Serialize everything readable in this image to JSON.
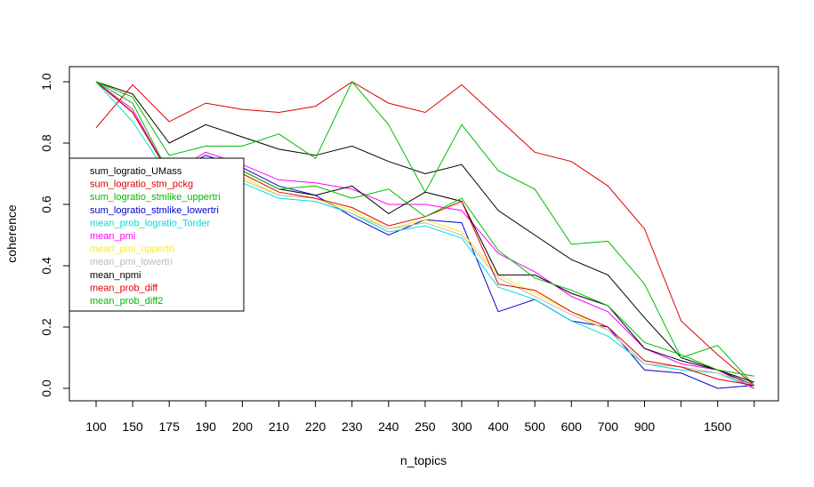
{
  "chart_data": {
    "type": "line",
    "xlabel": "n_topics",
    "ylabel": "coherence",
    "categories": [
      "100",
      "150",
      "175",
      "190",
      "200",
      "210",
      "220",
      "230",
      "240",
      "250",
      "300",
      "400",
      "500",
      "600",
      "700",
      "900",
      "",
      "1500",
      ""
    ],
    "ylim": [
      0,
      1
    ],
    "yticks": [
      "0.0",
      "0.2",
      "0.4",
      "0.6",
      "0.8",
      "1.0"
    ],
    "grid": false,
    "legend_position": "left",
    "series": [
      {
        "name": "sum_logratio_UMass",
        "color": "#000000",
        "values": [
          1.0,
          0.96,
          0.8,
          0.86,
          0.82,
          0.78,
          0.76,
          0.79,
          0.74,
          0.7,
          0.73,
          0.58,
          0.5,
          0.42,
          0.37,
          0.23,
          0.1,
          0.06,
          0.01
        ]
      },
      {
        "name": "sum_logratio_stm_pckg",
        "color": "#dd0000",
        "values": [
          0.85,
          0.99,
          0.87,
          0.93,
          0.91,
          0.9,
          0.92,
          1.0,
          0.93,
          0.9,
          0.99,
          0.88,
          0.77,
          0.74,
          0.66,
          0.52,
          0.22,
          0.11,
          0.01
        ]
      },
      {
        "name": "sum_logratio_stmlike_uppertri",
        "color": "#00bb00",
        "values": [
          1.0,
          0.95,
          0.76,
          0.79,
          0.79,
          0.83,
          0.75,
          1.0,
          0.86,
          0.64,
          0.86,
          0.71,
          0.65,
          0.47,
          0.48,
          0.34,
          0.1,
          0.14,
          0.01
        ]
      },
      {
        "name": "sum_logratio_stmlike_lowertri",
        "color": "#0000cc",
        "values": [
          1.0,
          0.9,
          0.7,
          0.76,
          0.72,
          0.66,
          0.63,
          0.56,
          0.5,
          0.55,
          0.54,
          0.25,
          0.29,
          0.22,
          0.2,
          0.06,
          0.05,
          0.0,
          0.01
        ]
      },
      {
        "name": "mean_prob_logratio_Torder",
        "color": "#00dddd",
        "values": [
          1.0,
          0.87,
          0.69,
          0.7,
          0.67,
          0.62,
          0.61,
          0.57,
          0.51,
          0.53,
          0.49,
          0.33,
          0.29,
          0.22,
          0.17,
          0.08,
          0.06,
          0.05,
          0.0
        ]
      },
      {
        "name": "mean_pmi",
        "color": "#ff00ff",
        "values": [
          1.0,
          0.91,
          0.7,
          0.77,
          0.73,
          0.68,
          0.67,
          0.65,
          0.6,
          0.6,
          0.58,
          0.44,
          0.38,
          0.3,
          0.25,
          0.13,
          0.08,
          0.06,
          0.0
        ]
      },
      {
        "name": "mean_pmi_uppertri",
        "color": "#ffee00",
        "values": [
          1.0,
          0.9,
          0.7,
          0.71,
          0.69,
          0.63,
          0.62,
          0.58,
          0.52,
          0.55,
          0.51,
          0.37,
          0.31,
          0.25,
          0.19,
          0.08,
          0.07,
          0.05,
          0.01
        ]
      },
      {
        "name": "mean_pmi_lowertri",
        "color": "#bbbbbb",
        "values": [
          1.0,
          0.9,
          0.7,
          0.71,
          0.68,
          0.63,
          0.62,
          0.57,
          0.52,
          0.54,
          0.5,
          0.36,
          0.3,
          0.24,
          0.19,
          0.08,
          0.07,
          0.05,
          0.01
        ]
      },
      {
        "name": "mean_npmi",
        "color": "#000000",
        "values": [
          1.0,
          0.9,
          0.7,
          0.74,
          0.71,
          0.65,
          0.63,
          0.66,
          0.57,
          0.64,
          0.61,
          0.37,
          0.37,
          0.31,
          0.27,
          0.13,
          0.09,
          0.06,
          0.02
        ]
      },
      {
        "name": "mean_prob_diff",
        "color": "#dd0000",
        "values": [
          1.0,
          0.9,
          0.7,
          0.72,
          0.7,
          0.64,
          0.62,
          0.59,
          0.53,
          0.56,
          0.61,
          0.34,
          0.32,
          0.25,
          0.2,
          0.09,
          0.07,
          0.03,
          0.01
        ]
      },
      {
        "name": "mean_prob_diff2",
        "color": "#00bb00",
        "values": [
          1.0,
          0.93,
          0.7,
          0.72,
          0.71,
          0.65,
          0.66,
          0.62,
          0.65,
          0.56,
          0.62,
          0.45,
          0.36,
          0.32,
          0.27,
          0.15,
          0.11,
          0.06,
          0.04
        ]
      }
    ]
  }
}
